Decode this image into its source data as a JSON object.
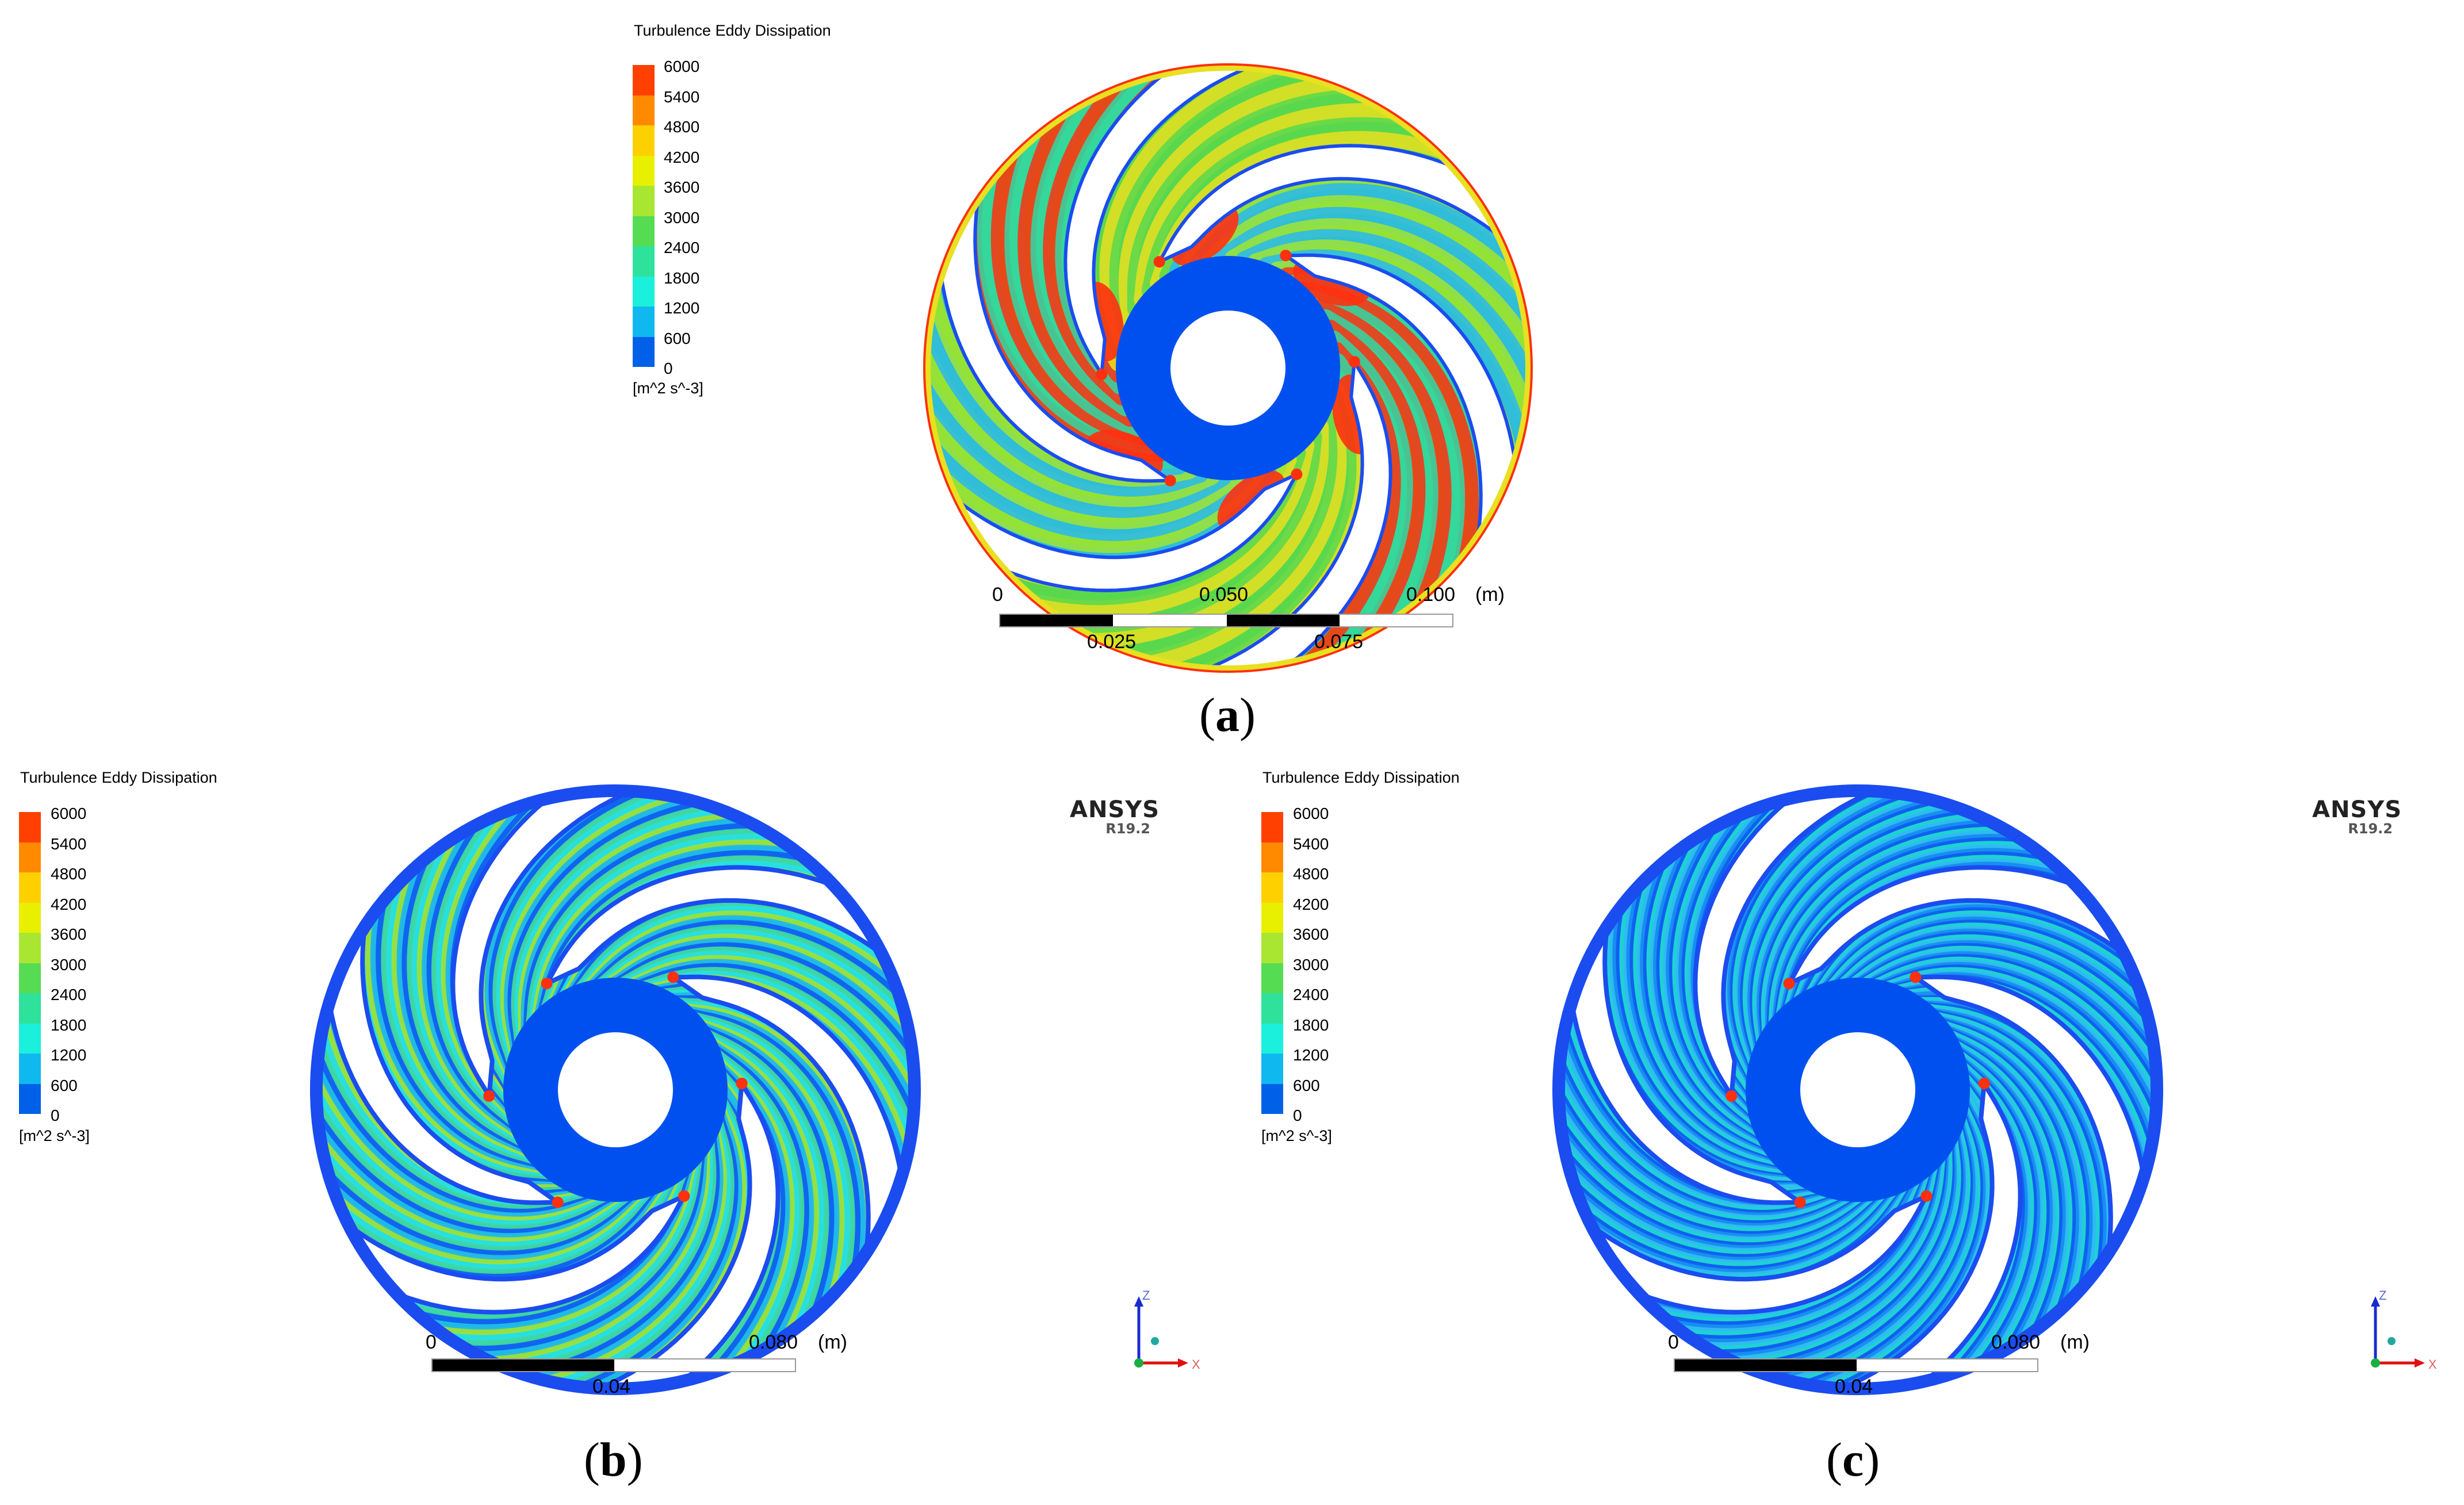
{
  "legend": {
    "title": "Turbulence Eddy Dissipation",
    "ticks": [
      "6000",
      "5400",
      "4800",
      "4200",
      "3600",
      "3000",
      "2400",
      "1800",
      "1200",
      "600",
      "0"
    ],
    "unit": "[m^2 s^-3]",
    "colors": [
      "#ff4000",
      "#ff8a00",
      "#ffd000",
      "#e8f000",
      "#a8e632",
      "#56dc52",
      "#2ee29c",
      "#1af0dc",
      "#10b8f0",
      "#0060e8"
    ]
  },
  "logo": {
    "name": "ANSYS",
    "version": "R19.2"
  },
  "axes": {
    "z": "Z",
    "x": "X"
  },
  "scale_a": {
    "zero": "0",
    "mid_top": "0.050",
    "end": "0.100",
    "unit": "(m)",
    "q1": "0.025",
    "q3": "0.075"
  },
  "scale_bc": {
    "zero": "0",
    "end": "0.080",
    "unit": "(m)",
    "mid": "0.04"
  },
  "captions": {
    "a": {
      "open": "(",
      "letter": "a",
      "close": ")"
    },
    "b": {
      "open": "(",
      "letter": "b",
      "close": ")"
    },
    "c": {
      "open": "(",
      "letter": "c",
      "close": ")"
    }
  },
  "field_colors": {
    "blade": "#ffffff",
    "hub": "#0050f0",
    "rim": "#1a4cf0",
    "a_field": [
      "#5ad84e",
      "#a0e432",
      "#2ed8a8",
      "#e8e020",
      "#28b8f0",
      "#ff3010"
    ],
    "b_field": [
      "#20b8e8",
      "#40d8a0",
      "#9ce03a",
      "#1060f0",
      "#28e0e0"
    ],
    "c_field": [
      "#1060f0",
      "#1890f0",
      "#30c0f0",
      "#20d8d0"
    ]
  }
}
